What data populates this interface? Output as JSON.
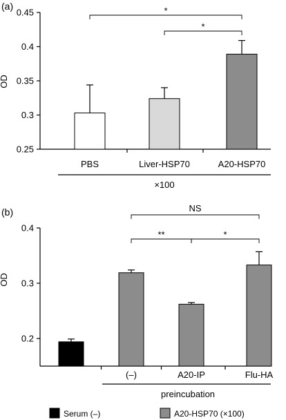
{
  "chart_data": [
    {
      "type": "bar",
      "panel_label": "(a)",
      "ylabel": "OD",
      "ylim": [
        0.25,
        0.45
      ],
      "yticks": [
        "0.25",
        "0.3",
        "0.35",
        "0.4",
        "0.45"
      ],
      "categories": [
        "PBS",
        "Liver-HSP70",
        "A20-HSP70"
      ],
      "values": [
        0.303,
        0.324,
        0.389
      ],
      "errors": [
        0.041,
        0.016,
        0.02
      ],
      "colors": [
        "#ffffff",
        "#d9d9d9",
        "#8c8c8c"
      ],
      "group_label": "×100",
      "significance": [
        {
          "from": 0,
          "to": 2,
          "label": "*"
        },
        {
          "from": 1,
          "to": 2,
          "label": "*"
        }
      ]
    },
    {
      "type": "bar",
      "panel_label": "(b)",
      "ylabel": "OD",
      "ylim": [
        0.15,
        0.4
      ],
      "yticks": [
        "0.2",
        "0.3",
        "0.4"
      ],
      "categories": [
        "",
        "(–)",
        "A20-IP",
        "Flu-HA"
      ],
      "values": [
        0.194,
        0.319,
        0.262,
        0.333
      ],
      "errors": [
        0.005,
        0.005,
        0.003,
        0.024
      ],
      "colors": [
        "#000000",
        "#8c8c8c",
        "#8c8c8c",
        "#8c8c8c"
      ],
      "group_label": "preincubation",
      "significance": [
        {
          "from": 1,
          "to": 3,
          "label": "NS"
        },
        {
          "from": 1,
          "to": 2,
          "label": "**"
        },
        {
          "from": 2,
          "to": 3,
          "label": "*"
        }
      ]
    }
  ],
  "legend": {
    "items": [
      {
        "label": "Serum (–)",
        "color": "#000000"
      },
      {
        "label": "A20-HSP70 (×100)",
        "color": "#8c8c8c"
      }
    ]
  }
}
